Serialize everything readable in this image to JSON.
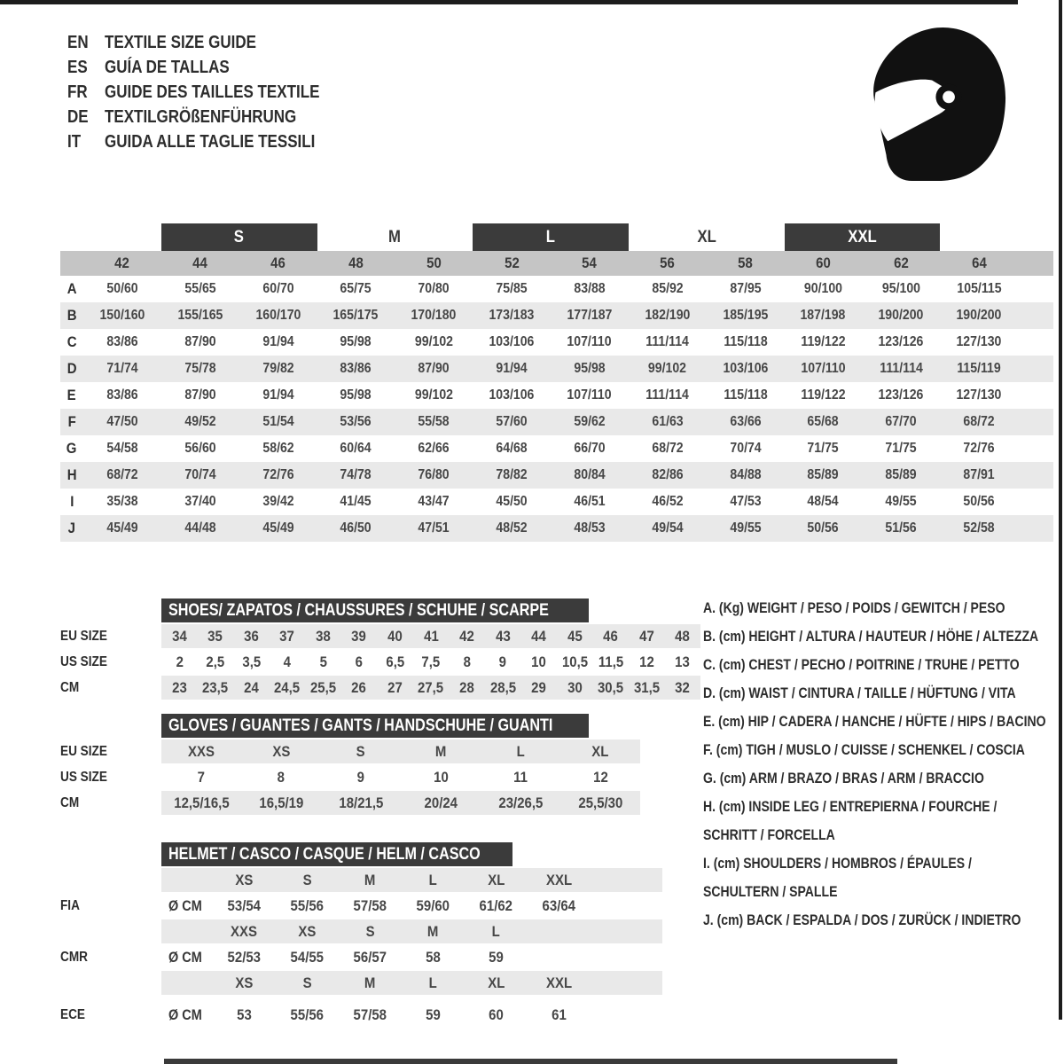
{
  "header": {
    "languages": [
      {
        "code": "EN",
        "title": "TEXTILE SIZE GUIDE"
      },
      {
        "code": "ES",
        "title": "GUÍA DE TALLAS"
      },
      {
        "code": "FR",
        "title": "GUIDE DES TAILLES TEXTILE"
      },
      {
        "code": "DE",
        "title": "TEXTILGRÖßENFÜHRUNG"
      },
      {
        "code": "IT",
        "title": "GUIDA ALLE TAGLIE TESSILI"
      }
    ],
    "icon": "racing-helmet-icon"
  },
  "colors": {
    "dark_bar": "#3b3b3b",
    "number_bar": "#c5c5c5",
    "stripe": "#e9e9e9",
    "text": "#474747",
    "icon": "#111111"
  },
  "main_table": {
    "size_groups": [
      {
        "label": "S",
        "boxed": true
      },
      {
        "label": "M",
        "boxed": false
      },
      {
        "label": "L",
        "boxed": true
      },
      {
        "label": "XL",
        "boxed": false
      },
      {
        "label": "XXL",
        "boxed": true
      }
    ],
    "columns": [
      "42",
      "44",
      "46",
      "48",
      "50",
      "52",
      "54",
      "56",
      "58",
      "60",
      "62",
      "64"
    ],
    "rows": [
      {
        "label": "A",
        "values": [
          "50/60",
          "55/65",
          "60/70",
          "65/75",
          "70/80",
          "75/85",
          "83/88",
          "85/92",
          "87/95",
          "90/100",
          "95/100",
          "105/115"
        ]
      },
      {
        "label": "B",
        "values": [
          "150/160",
          "155/165",
          "160/170",
          "165/175",
          "170/180",
          "173/183",
          "177/187",
          "182/190",
          "185/195",
          "187/198",
          "190/200",
          "190/200"
        ]
      },
      {
        "label": "C",
        "values": [
          "83/86",
          "87/90",
          "91/94",
          "95/98",
          "99/102",
          "103/106",
          "107/110",
          "111/114",
          "115/118",
          "119/122",
          "123/126",
          "127/130"
        ]
      },
      {
        "label": "D",
        "values": [
          "71/74",
          "75/78",
          "79/82",
          "83/86",
          "87/90",
          "91/94",
          "95/98",
          "99/102",
          "103/106",
          "107/110",
          "111/114",
          "115/119"
        ]
      },
      {
        "label": "E",
        "values": [
          "83/86",
          "87/90",
          "91/94",
          "95/98",
          "99/102",
          "103/106",
          "107/110",
          "111/114",
          "115/118",
          "119/122",
          "123/126",
          "127/130"
        ]
      },
      {
        "label": "F",
        "values": [
          "47/50",
          "49/52",
          "51/54",
          "53/56",
          "55/58",
          "57/60",
          "59/62",
          "61/63",
          "63/66",
          "65/68",
          "67/70",
          "68/72"
        ]
      },
      {
        "label": "G",
        "values": [
          "54/58",
          "56/60",
          "58/62",
          "60/64",
          "62/66",
          "64/68",
          "66/70",
          "68/72",
          "70/74",
          "71/75",
          "71/75",
          "72/76"
        ]
      },
      {
        "label": "H",
        "values": [
          "68/72",
          "70/74",
          "72/76",
          "74/78",
          "76/80",
          "78/82",
          "80/84",
          "82/86",
          "84/88",
          "85/89",
          "85/89",
          "87/91"
        ]
      },
      {
        "label": "I",
        "values": [
          "35/38",
          "37/40",
          "39/42",
          "41/45",
          "43/47",
          "45/50",
          "46/51",
          "46/52",
          "47/53",
          "48/54",
          "49/55",
          "50/56"
        ]
      },
      {
        "label": "J",
        "values": [
          "45/49",
          "44/48",
          "45/49",
          "46/50",
          "47/51",
          "48/52",
          "48/53",
          "49/54",
          "49/55",
          "50/56",
          "51/56",
          "52/58"
        ]
      }
    ]
  },
  "shoes": {
    "title": "SHOES/ ZAPATOS / CHAUSSURES / SCHUHE / SCARPE",
    "rows": [
      {
        "label": "EU SIZE",
        "gray": true,
        "values": [
          "34",
          "35",
          "36",
          "37",
          "38",
          "39",
          "40",
          "41",
          "42",
          "43",
          "44",
          "45",
          "46",
          "47",
          "48"
        ]
      },
      {
        "label": "US SIZE",
        "gray": false,
        "values": [
          "2",
          "2,5",
          "3,5",
          "4",
          "5",
          "6",
          "6,5",
          "7,5",
          "8",
          "9",
          "10",
          "10,5",
          "11,5",
          "12",
          "13"
        ]
      },
      {
        "label": "CM",
        "gray": true,
        "values": [
          "23",
          "23,5",
          "24",
          "24,5",
          "25,5",
          "26",
          "27",
          "27,5",
          "28",
          "28,5",
          "29",
          "30",
          "30,5",
          "31,5",
          "32"
        ]
      }
    ]
  },
  "gloves": {
    "title": "GLOVES / GUANTES / GANTS / HANDSCHUHE / GUANTI",
    "rows": [
      {
        "label": "EU SIZE",
        "gray": true,
        "values": [
          "XXS",
          "XS",
          "S",
          "M",
          "L",
          "XL"
        ]
      },
      {
        "label": "US SIZE",
        "gray": false,
        "values": [
          "7",
          "8",
          "9",
          "10",
          "11",
          "12"
        ]
      },
      {
        "label": "CM",
        "gray": true,
        "values": [
          "12,5/16,5",
          "16,5/19",
          "18/21,5",
          "20/24",
          "23/26,5",
          "25,5/30"
        ]
      }
    ]
  },
  "helmet": {
    "title": "HELMET / CASCO / CASQUE / HELM / CASCO",
    "unit": "Ø CM",
    "sections": [
      {
        "label": "FIA",
        "sizes": [
          "XS",
          "S",
          "M",
          "L",
          "XL",
          "XXL"
        ],
        "values": [
          "53/54",
          "55/56",
          "57/58",
          "59/60",
          "61/62",
          "63/64"
        ]
      },
      {
        "label": "CMR",
        "sizes": [
          "XXS",
          "XS",
          "S",
          "M",
          "L",
          ""
        ],
        "values": [
          "52/53",
          "54/55",
          "56/57",
          "58",
          "59",
          ""
        ]
      },
      {
        "label": "ECE",
        "sizes": [
          "XS",
          "S",
          "M",
          "L",
          "XL",
          "XXL"
        ],
        "values": [
          "53",
          "55/56",
          "57/58",
          "59",
          "60",
          "61"
        ]
      }
    ]
  },
  "legend": {
    "lines": [
      "A. (Kg) WEIGHT / PESO / POIDS / GEWITCH / PESO",
      "B. (cm) HEIGHT / ALTURA / HAUTEUR / HÖHE / ALTEZZA",
      "C. (cm) CHEST / PECHO / POITRINE / TRUHE / PETTO",
      "D. (cm) WAIST / CINTURA / TAILLE / HÜFTUNG / VITA",
      "E. (cm) HIP / CADERA / HANCHE / HÜFTE / HIPS / BACINO",
      "F. (cm) TIGH / MUSLO / CUISSE / SCHENKEL / COSCIA",
      "G. (cm) ARM / BRAZO / BRAS / ARM / BRACCIO",
      "H. (cm) INSIDE LEG / ENTREPIERNA / FOURCHE /",
      "SCHRITT / FORCELLA",
      "I. (cm) SHOULDERS / HOMBROS / ÉPAULES /",
      "SCHULTERN / SPALLE",
      "J. (cm) BACK / ESPALDA / DOS / ZURÜCK / INDIETRO"
    ]
  }
}
